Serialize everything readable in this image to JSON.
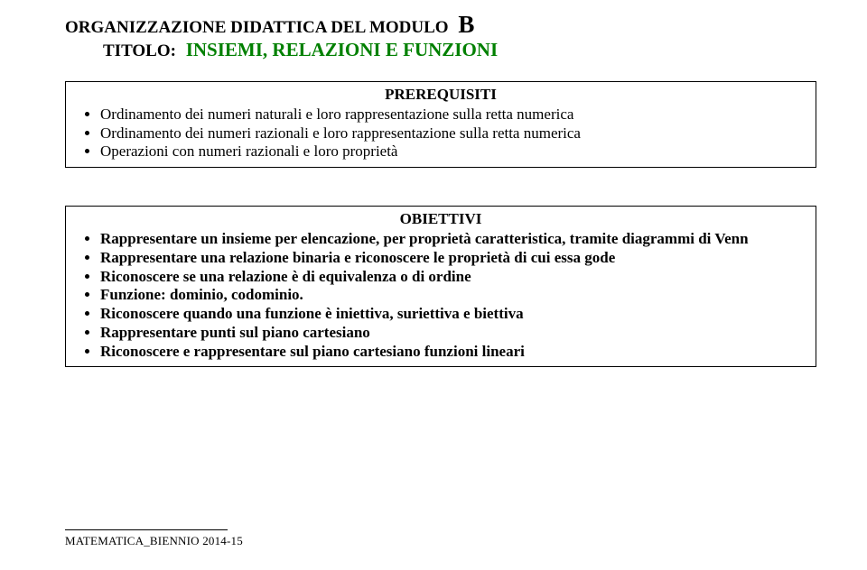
{
  "header": {
    "line1_prefix": "ORGANIZZAZIONE DIDATTICA DEL MODULO",
    "module_letter": "B",
    "line2_prefix": "TITOLO:",
    "subtitle": "INSIEMI, RELAZIONI E FUNZIONI"
  },
  "prerequisites": {
    "title": "PREREQUISITI",
    "items": [
      "Ordinamento dei numeri naturali e loro rappresentazione sulla retta numerica",
      "Ordinamento dei numeri razionali e loro rappresentazione sulla retta numerica",
      "Operazioni con numeri razionali e loro proprietà"
    ]
  },
  "objectives": {
    "title": "OBIETTIVI",
    "items": [
      "Rappresentare un insieme per elencazione, per proprietà caratteristica, tramite diagrammi di Venn",
      "Rappresentare una relazione binaria e riconoscere le proprietà di cui essa gode",
      "Riconoscere se una relazione è di equivalenza o di ordine",
      "Funzione: dominio, codominio.",
      "Riconoscere quando una funzione è iniettiva, suriettiva e biettiva",
      "Rappresentare punti sul piano cartesiano",
      "Riconoscere e rappresentare sul piano cartesiano funzioni lineari"
    ]
  },
  "footer": {
    "text": "MATEMATICA_BIENNIO 2014-15"
  }
}
